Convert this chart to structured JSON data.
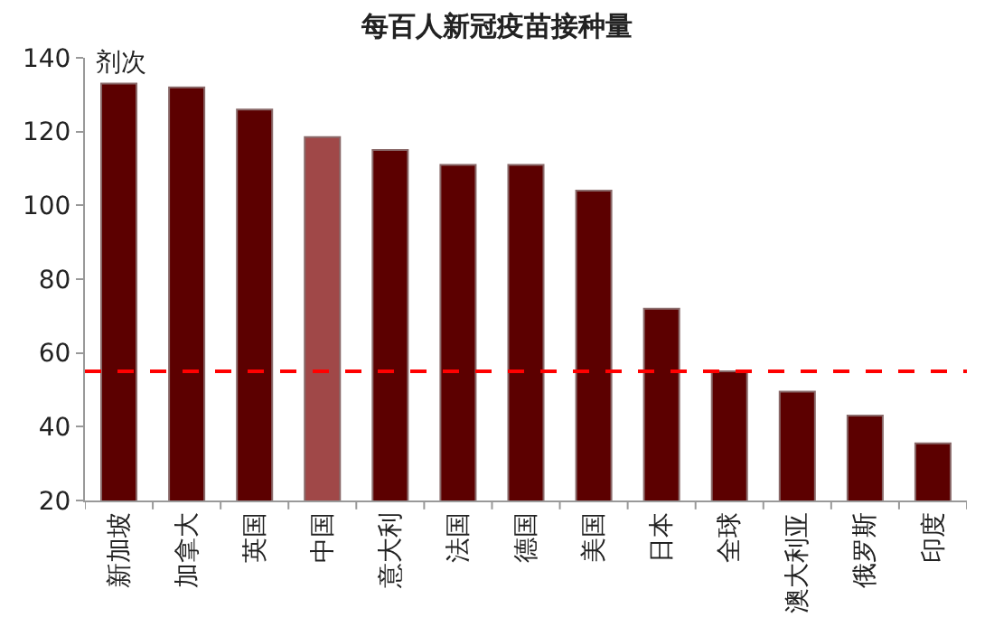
{
  "chart_data": {
    "type": "bar",
    "title": "每百人新冠疫苗接种量",
    "ylabel": "剂次",
    "categories": [
      "新加坡",
      "加拿大",
      "英国",
      "中国",
      "意大利",
      "法国",
      "德国",
      "美国",
      "日本",
      "全球",
      "澳大利亚",
      "俄罗斯",
      "印度"
    ],
    "values": [
      133,
      132,
      126,
      118.5,
      115,
      111,
      111,
      104,
      72,
      55,
      49.5,
      43,
      35.5
    ],
    "colors": [
      "#5c0000",
      "#5c0000",
      "#5c0000",
      "#a04848",
      "#5c0000",
      "#5c0000",
      "#5c0000",
      "#5c0000",
      "#5c0000",
      "#5c0000",
      "#5c0000",
      "#5c0000",
      "#5c0000"
    ],
    "ylim": [
      20,
      140
    ],
    "yticks": [
      20,
      40,
      60,
      80,
      100,
      120,
      140
    ],
    "ref_lines": [
      {
        "axis": "y",
        "value": 55,
        "color": "#ff0000",
        "line_style": "dashed"
      }
    ]
  }
}
